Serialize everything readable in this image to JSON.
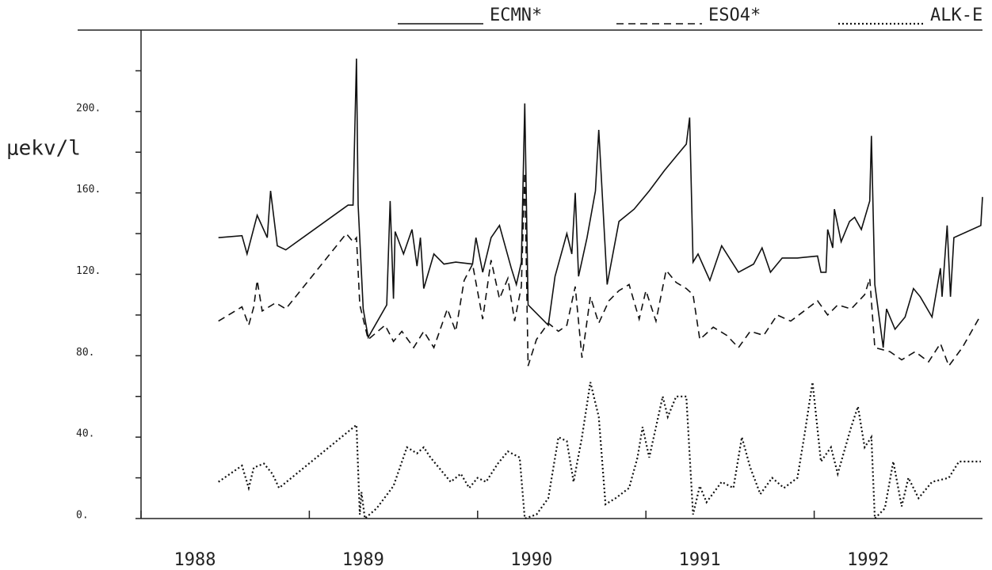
{
  "chart_data": {
    "type": "line",
    "ylabel": "μekv/l",
    "xlim": [
      1988,
      1993
    ],
    "xticks": [
      1988,
      1989,
      1990,
      1991,
      1992
    ],
    "ylim": [
      0,
      240
    ],
    "yticks": [
      {
        "value": 0,
        "label": "0."
      },
      {
        "value": 40,
        "label": "40."
      },
      {
        "value": 80,
        "label": "80."
      },
      {
        "value": 120,
        "label": "120."
      },
      {
        "value": 160,
        "label": "160."
      },
      {
        "value": 200,
        "label": "200."
      }
    ],
    "yminor_ticks": [
      20,
      60,
      100,
      140,
      180,
      220
    ],
    "legend": "top-right",
    "series": [
      {
        "name": "ECMN*",
        "color": "#111111",
        "dash": "solid",
        "x": [
          1988.46,
          1988.6,
          1988.63,
          1988.69,
          1988.75,
          1988.77,
          1988.81,
          1988.86,
          1989.23,
          1989.26,
          1989.28,
          1989.29,
          1989.32,
          1989.35,
          1989.46,
          1989.48,
          1989.5,
          1989.51,
          1989.56,
          1989.61,
          1989.64,
          1989.66,
          1989.68,
          1989.74,
          1989.8,
          1989.87,
          1989.97,
          1989.99,
          1990.03,
          1990.08,
          1990.13,
          1990.2,
          1990.23,
          1990.26,
          1990.28,
          1990.3,
          1990.42,
          1990.46,
          1990.53,
          1990.56,
          1990.58,
          1990.6,
          1990.65,
          1990.7,
          1990.72,
          1990.77,
          1990.84,
          1990.93,
          1991.02,
          1991.11,
          1991.19,
          1991.24,
          1991.26,
          1991.28,
          1991.31,
          1991.38,
          1991.45,
          1991.55,
          1991.64,
          1991.69,
          1991.74,
          1991.81,
          1991.9,
          1992.02,
          1992.04,
          1992.07,
          1992.08,
          1992.11,
          1992.12,
          1992.16,
          1992.21,
          1992.24,
          1992.28,
          1992.33,
          1992.34,
          1992.36,
          1992.41,
          1992.43,
          1992.48,
          1992.54,
          1992.59,
          1992.63,
          1992.7,
          1992.75,
          1992.76,
          1992.79,
          1992.81,
          1992.83,
          1992.99,
          1993.0
        ],
        "values": [
          138,
          139,
          130,
          149,
          138,
          161,
          134,
          132,
          154,
          154,
          226,
          154,
          103,
          89,
          105,
          156,
          108,
          141,
          130,
          142,
          124,
          138,
          113,
          130,
          125,
          126,
          125,
          138,
          121,
          138,
          144,
          123,
          115,
          126,
          204,
          105,
          95,
          119,
          140,
          130,
          160,
          119,
          138,
          161,
          191,
          115,
          146,
          152,
          161,
          171,
          179,
          184,
          197,
          126,
          130,
          117,
          134,
          121,
          125,
          133,
          121,
          128,
          128,
          129,
          121,
          121,
          142,
          133,
          152,
          136,
          146,
          148,
          142,
          156,
          188,
          115,
          84,
          103,
          93,
          99,
          113,
          109,
          99,
          123,
          109,
          144,
          109,
          138,
          144,
          158
        ]
      },
      {
        "name": "ESO4*",
        "color": "#111111",
        "dash": "dashed",
        "x": [
          1988.46,
          1988.6,
          1988.64,
          1988.67,
          1988.69,
          1988.72,
          1988.8,
          1988.86,
          1989.22,
          1989.26,
          1989.28,
          1989.3,
          1989.35,
          1989.45,
          1989.5,
          1989.55,
          1989.62,
          1989.68,
          1989.74,
          1989.82,
          1989.87,
          1989.92,
          1989.97,
          1990.03,
          1990.08,
          1990.13,
          1990.18,
          1990.22,
          1990.26,
          1990.28,
          1990.3,
          1990.35,
          1990.42,
          1990.48,
          1990.53,
          1990.58,
          1990.62,
          1990.67,
          1990.72,
          1990.78,
          1990.84,
          1990.9,
          1990.96,
          1991.0,
          1991.06,
          1991.12,
          1991.18,
          1991.24,
          1991.28,
          1991.32,
          1991.4,
          1991.48,
          1991.55,
          1991.62,
          1991.7,
          1991.78,
          1991.86,
          1991.94,
          1992.02,
          1992.08,
          1992.14,
          1992.22,
          1992.3,
          1992.33,
          1992.36,
          1992.45,
          1992.52,
          1992.6,
          1992.68,
          1992.75,
          1992.8,
          1992.88,
          1992.99
        ],
        "values": [
          97,
          104,
          95,
          104,
          117,
          102,
          106,
          103,
          140,
          136,
          138,
          105,
          88,
          95,
          87,
          92,
          84,
          92,
          84,
          103,
          92,
          117,
          125,
          98,
          127,
          108,
          118,
          97,
          114,
          170,
          75,
          88,
          96,
          92,
          95,
          114,
          79,
          109,
          96,
          107,
          112,
          115,
          98,
          112,
          97,
          122,
          116,
          113,
          110,
          88,
          94,
          90,
          84,
          92,
          90,
          100,
          97,
          102,
          107,
          100,
          105,
          103,
          110,
          118,
          84,
          82,
          78,
          82,
          77,
          86,
          75,
          84,
          100
        ]
      },
      {
        "name": "ALK-E",
        "color": "#111111",
        "dash": "dotted",
        "x": [
          1988.46,
          1988.6,
          1988.64,
          1988.67,
          1988.73,
          1988.78,
          1988.82,
          1989.25,
          1989.28,
          1989.3,
          1989.31,
          1989.33,
          1989.4,
          1989.5,
          1989.58,
          1989.64,
          1989.68,
          1989.72,
          1989.84,
          1989.9,
          1989.95,
          1990.0,
          1990.05,
          1990.12,
          1990.18,
          1990.25,
          1990.28,
          1990.35,
          1990.42,
          1990.48,
          1990.53,
          1990.57,
          1990.62,
          1990.67,
          1990.72,
          1990.76,
          1990.82,
          1990.9,
          1990.95,
          1990.98,
          1991.02,
          1991.1,
          1991.13,
          1991.18,
          1991.24,
          1991.28,
          1991.32,
          1991.36,
          1991.45,
          1991.52,
          1991.57,
          1991.62,
          1991.68,
          1991.75,
          1991.82,
          1991.9,
          1991.94,
          1991.99,
          1992.04,
          1992.1,
          1992.14,
          1992.22,
          1992.26,
          1992.3,
          1992.34,
          1992.36,
          1992.42,
          1992.47,
          1992.52,
          1992.56,
          1992.62,
          1992.7,
          1992.8,
          1992.86,
          1992.99
        ],
        "values": [
          18,
          26,
          15,
          25,
          27,
          22,
          15,
          44,
          46,
          2,
          13,
          0,
          5,
          16,
          35,
          32,
          35,
          30,
          18,
          22,
          15,
          20,
          18,
          27,
          33,
          30,
          0,
          2,
          10,
          40,
          38,
          18,
          40,
          67,
          50,
          7,
          10,
          15,
          30,
          45,
          30,
          60,
          50,
          60,
          60,
          2,
          16,
          8,
          18,
          15,
          40,
          25,
          12,
          20,
          15,
          20,
          40,
          67,
          28,
          35,
          22,
          45,
          55,
          35,
          40,
          0,
          5,
          28,
          6,
          20,
          10,
          18,
          20,
          28,
          28
        ]
      }
    ]
  }
}
